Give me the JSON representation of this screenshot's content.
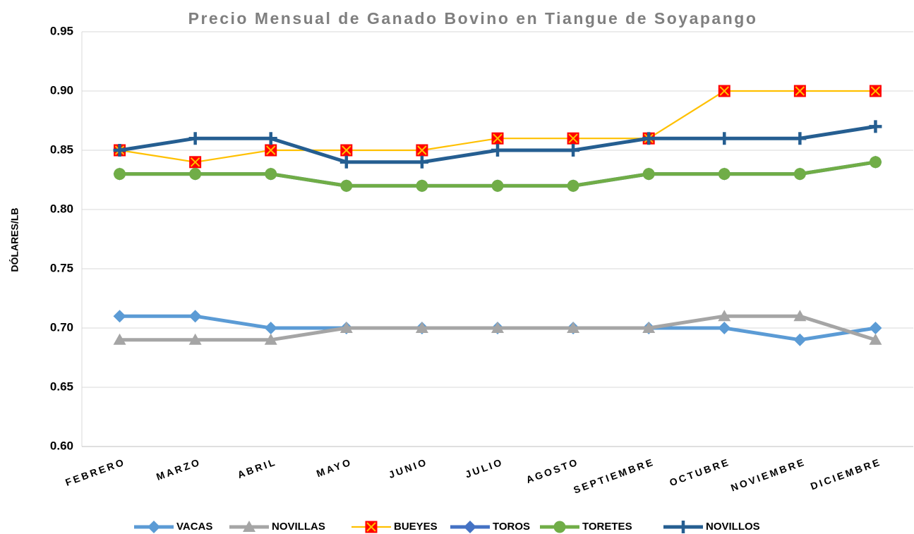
{
  "chart_data": {
    "type": "line",
    "title": "Precio Mensual de Ganado Bovino en Tiangue de Soyapango",
    "y_label": "DÓLARES/LB",
    "categories": [
      "FEBRERO",
      "MARZO",
      "ABRIL",
      "MAYO",
      "JUNIO",
      "JULIO",
      "AGOSTO",
      "SEPTIEMBRE",
      "OCTUBRE",
      "NOVIEMBRE",
      "DICIEMBRE"
    ],
    "series": [
      {
        "name": "VACAS",
        "color": "#5b9bd5",
        "marker": "diamond",
        "values": [
          0.71,
          0.71,
          0.7,
          0.7,
          0.7,
          0.7,
          0.7,
          0.7,
          0.7,
          0.69,
          0.7
        ]
      },
      {
        "name": "NOVILLAS",
        "color": "#a5a5a5",
        "marker": "triangle",
        "values": [
          0.69,
          0.69,
          0.69,
          0.7,
          0.7,
          0.7,
          0.7,
          0.7,
          0.71,
          0.71,
          0.69
        ]
      },
      {
        "name": "BUEYES",
        "color": "#ffc000",
        "marker": "square-x",
        "marker_color": "#ff0000",
        "values": [
          0.85,
          0.84,
          0.85,
          0.85,
          0.85,
          0.86,
          0.86,
          0.86,
          0.9,
          0.9,
          0.9
        ]
      },
      {
        "name": "TOROS",
        "color": "#4472c4",
        "marker": "diamond",
        "values": [
          0.83,
          0.83,
          0.83,
          0.82,
          0.82,
          0.82,
          0.82,
          0.83,
          0.83,
          0.83,
          0.84
        ]
      },
      {
        "name": "TORETES",
        "color": "#70ad47",
        "marker": "circle",
        "values": [
          0.83,
          0.83,
          0.83,
          0.82,
          0.82,
          0.82,
          0.82,
          0.83,
          0.83,
          0.83,
          0.84
        ]
      },
      {
        "name": "NOVILLOS",
        "color": "#255e91",
        "marker": "plus",
        "values": [
          0.85,
          0.86,
          0.86,
          0.84,
          0.84,
          0.85,
          0.85,
          0.86,
          0.86,
          0.86,
          0.87
        ]
      }
    ],
    "ylim": [
      0.6,
      0.95
    ],
    "yticks": [
      {
        "value": 0.6,
        "label": "0.60"
      },
      {
        "value": 0.65,
        "label": "0.65"
      },
      {
        "value": 0.7,
        "label": "0.70"
      },
      {
        "value": 0.75,
        "label": "0.75"
      },
      {
        "value": 0.8,
        "label": "0.80"
      },
      {
        "value": 0.85,
        "label": "0.85"
      },
      {
        "value": 0.9,
        "label": "0.90"
      },
      {
        "value": 0.95,
        "label": "0.95"
      }
    ],
    "grid": true,
    "legend": "bottom"
  }
}
